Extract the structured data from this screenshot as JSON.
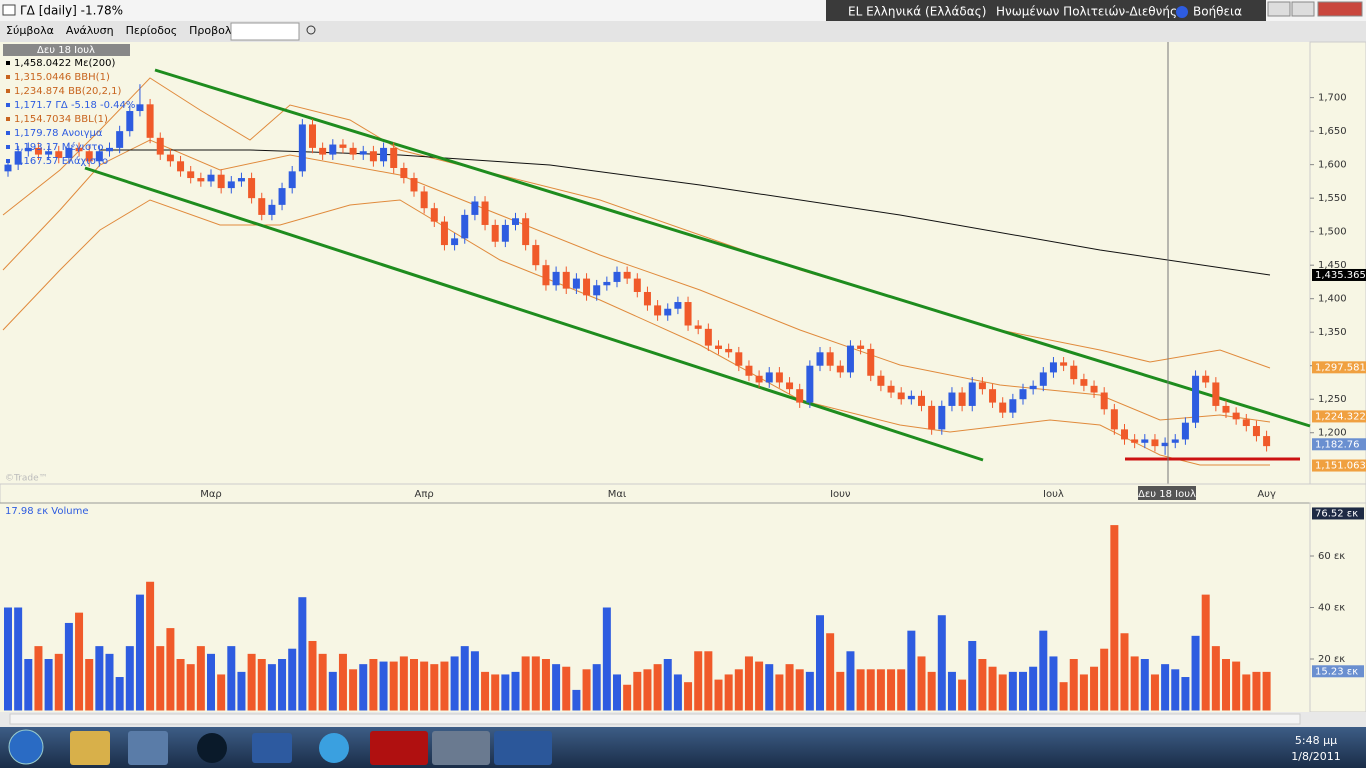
{
  "window": {
    "title": "ΓΔ [daily] -1.78%",
    "language": "EL Ελληνικά (Ελλάδας)",
    "keyboard": "Ηνωμένων Πολιτειών-Διεθνής",
    "help": "Βοήθεια"
  },
  "menu": [
    "Σύμβολα",
    "Ανάλυση",
    "Περίοδος",
    "Προβολή"
  ],
  "price_chart": {
    "type": "candlestick",
    "info_date": "Δευ 18 Ιουλ",
    "info": [
      {
        "text": "1,458.0422 Με(200)",
        "color": "#000000"
      },
      {
        "text": "1,315.0446 BBH(1)",
        "color": "#c8641e"
      },
      {
        "text": "1,234.874 BB(20,2,1)",
        "color": "#c8641e"
      },
      {
        "text": "1,171.7 ΓΔ -5.18 -0.44%",
        "color": "#2e5ce0"
      },
      {
        "text": "1,154.7034 BBL(1)",
        "color": "#c8641e"
      },
      {
        "text": "1,179.78 Ανοιγμα",
        "color": "#2e5ce0"
      },
      {
        "text": "1,193.17 Μέγιστο",
        "color": "#2e5ce0"
      },
      {
        "text": "1,167.57 Ελάχιστο",
        "color": "#2e5ce0"
      }
    ],
    "watermark": "©Trade™",
    "crosshair_label": "Δευ 18 Ιουλ",
    "categories": [
      null,
      null,
      null,
      null,
      null,
      null,
      null,
      null,
      null,
      null,
      null,
      null,
      null,
      null,
      null,
      null,
      null,
      null,
      null,
      null,
      "Μαρ",
      null,
      null,
      null,
      null,
      null,
      null,
      null,
      null,
      null,
      null,
      null,
      null,
      null,
      null,
      null,
      null,
      null,
      null,
      null,
      null,
      "Απρ",
      null,
      null,
      null,
      null,
      null,
      null,
      null,
      null,
      null,
      null,
      null,
      null,
      null,
      null,
      null,
      null,
      null,
      null,
      "Μαι",
      null,
      null,
      null,
      null,
      null,
      null,
      null,
      null,
      null,
      null,
      null,
      null,
      null,
      null,
      null,
      null,
      null,
      null,
      null,
      null,
      null,
      "Ιουν",
      null,
      null,
      null,
      null,
      null,
      null,
      null,
      null,
      null,
      null,
      null,
      null,
      null,
      null,
      null,
      null,
      null,
      null,
      null,
      null,
      "Ιουλ",
      null,
      null,
      null,
      null,
      null,
      null,
      null,
      null,
      null,
      null,
      null,
      null,
      null,
      null,
      null,
      null,
      null,
      null,
      null,
      null,
      "Αυγ"
    ],
    "candles": [
      [
        1590,
        1608,
        1582,
        1600
      ],
      [
        1600,
        1628,
        1592,
        1620
      ],
      [
        1620,
        1633,
        1612,
        1625
      ],
      [
        1625,
        1633,
        1607,
        1615
      ],
      [
        1615,
        1628,
        1607,
        1620
      ],
      [
        1620,
        1628,
        1602,
        1610
      ],
      [
        1610,
        1633,
        1602,
        1625
      ],
      [
        1625,
        1633,
        1612,
        1620
      ],
      [
        1620,
        1628,
        1597,
        1605
      ],
      [
        1605,
        1628,
        1597,
        1620
      ],
      [
        1620,
        1633,
        1612,
        1625
      ],
      [
        1625,
        1658,
        1617,
        1650
      ],
      [
        1650,
        1688,
        1642,
        1680
      ],
      [
        1680,
        1720,
        1672,
        1690
      ],
      [
        1690,
        1698,
        1632,
        1640
      ],
      [
        1640,
        1648,
        1607,
        1615
      ],
      [
        1615,
        1623,
        1597,
        1605
      ],
      [
        1605,
        1613,
        1582,
        1590
      ],
      [
        1590,
        1598,
        1572,
        1580
      ],
      [
        1580,
        1588,
        1567,
        1575
      ],
      [
        1575,
        1593,
        1567,
        1585
      ],
      [
        1585,
        1593,
        1557,
        1565
      ],
      [
        1565,
        1583,
        1557,
        1575
      ],
      [
        1575,
        1588,
        1567,
        1580
      ],
      [
        1580,
        1588,
        1542,
        1550
      ],
      [
        1550,
        1558,
        1517,
        1525
      ],
      [
        1525,
        1548,
        1517,
        1540
      ],
      [
        1540,
        1573,
        1532,
        1565
      ],
      [
        1565,
        1598,
        1557,
        1590
      ],
      [
        1590,
        1668,
        1582,
        1660
      ],
      [
        1660,
        1668,
        1617,
        1625
      ],
      [
        1625,
        1633,
        1607,
        1615
      ],
      [
        1615,
        1638,
        1607,
        1630
      ],
      [
        1630,
        1638,
        1617,
        1625
      ],
      [
        1625,
        1633,
        1607,
        1615
      ],
      [
        1615,
        1628,
        1607,
        1620
      ],
      [
        1620,
        1628,
        1597,
        1605
      ],
      [
        1605,
        1633,
        1597,
        1625
      ],
      [
        1625,
        1633,
        1587,
        1595
      ],
      [
        1595,
        1603,
        1572,
        1580
      ],
      [
        1580,
        1588,
        1552,
        1560
      ],
      [
        1560,
        1568,
        1527,
        1535
      ],
      [
        1535,
        1543,
        1507,
        1515
      ],
      [
        1515,
        1523,
        1472,
        1480
      ],
      [
        1480,
        1498,
        1472,
        1490
      ],
      [
        1490,
        1533,
        1482,
        1525
      ],
      [
        1525,
        1553,
        1517,
        1545
      ],
      [
        1545,
        1553,
        1502,
        1510
      ],
      [
        1510,
        1518,
        1477,
        1485
      ],
      [
        1485,
        1518,
        1477,
        1510
      ],
      [
        1510,
        1528,
        1502,
        1520
      ],
      [
        1520,
        1528,
        1472,
        1480
      ],
      [
        1480,
        1488,
        1442,
        1450
      ],
      [
        1450,
        1458,
        1412,
        1420
      ],
      [
        1420,
        1448,
        1412,
        1440
      ],
      [
        1440,
        1448,
        1407,
        1415
      ],
      [
        1415,
        1438,
        1407,
        1430
      ],
      [
        1430,
        1438,
        1397,
        1405
      ],
      [
        1405,
        1428,
        1397,
        1420
      ],
      [
        1420,
        1433,
        1412,
        1425
      ],
      [
        1425,
        1448,
        1417,
        1440
      ],
      [
        1440,
        1448,
        1422,
        1430
      ],
      [
        1430,
        1438,
        1402,
        1410
      ],
      [
        1410,
        1418,
        1382,
        1390
      ],
      [
        1390,
        1398,
        1367,
        1375
      ],
      [
        1375,
        1393,
        1367,
        1385
      ],
      [
        1385,
        1403,
        1377,
        1395
      ],
      [
        1395,
        1403,
        1352,
        1360
      ],
      [
        1360,
        1368,
        1347,
        1355
      ],
      [
        1355,
        1363,
        1322,
        1330
      ],
      [
        1330,
        1338,
        1317,
        1325
      ],
      [
        1325,
        1333,
        1312,
        1320
      ],
      [
        1320,
        1328,
        1292,
        1300
      ],
      [
        1300,
        1308,
        1277,
        1285
      ],
      [
        1285,
        1293,
        1267,
        1275
      ],
      [
        1275,
        1298,
        1267,
        1290
      ],
      [
        1290,
        1298,
        1267,
        1275
      ],
      [
        1275,
        1283,
        1257,
        1265
      ],
      [
        1265,
        1273,
        1237,
        1245
      ],
      [
        1245,
        1308,
        1237,
        1300
      ],
      [
        1300,
        1328,
        1292,
        1320
      ],
      [
        1320,
        1328,
        1292,
        1300
      ],
      [
        1300,
        1308,
        1282,
        1290
      ],
      [
        1290,
        1338,
        1282,
        1330
      ],
      [
        1330,
        1338,
        1317,
        1325
      ],
      [
        1325,
        1333,
        1277,
        1285
      ],
      [
        1285,
        1293,
        1262,
        1270
      ],
      [
        1270,
        1278,
        1252,
        1260
      ],
      [
        1260,
        1268,
        1242,
        1250
      ],
      [
        1250,
        1263,
        1242,
        1255
      ],
      [
        1255,
        1263,
        1232,
        1240
      ],
      [
        1240,
        1248,
        1197,
        1205
      ],
      [
        1205,
        1248,
        1197,
        1240
      ],
      [
        1240,
        1268,
        1232,
        1260
      ],
      [
        1260,
        1268,
        1232,
        1240
      ],
      [
        1240,
        1283,
        1232,
        1275
      ],
      [
        1275,
        1283,
        1257,
        1265
      ],
      [
        1265,
        1273,
        1237,
        1245
      ],
      [
        1245,
        1253,
        1222,
        1230
      ],
      [
        1230,
        1258,
        1222,
        1250
      ],
      [
        1250,
        1273,
        1242,
        1265
      ],
      [
        1265,
        1278,
        1257,
        1270
      ],
      [
        1270,
        1298,
        1262,
        1290
      ],
      [
        1290,
        1313,
        1282,
        1305
      ],
      [
        1305,
        1313,
        1292,
        1300
      ],
      [
        1300,
        1308,
        1272,
        1280
      ],
      [
        1280,
        1288,
        1262,
        1270
      ],
      [
        1270,
        1278,
        1252,
        1260
      ],
      [
        1260,
        1268,
        1227,
        1235
      ],
      [
        1235,
        1243,
        1197,
        1205
      ],
      [
        1205,
        1213,
        1182,
        1190
      ],
      [
        1190,
        1198,
        1177,
        1185
      ],
      [
        1185,
        1198,
        1177,
        1190
      ],
      [
        1190,
        1198,
        1172,
        1180
      ],
      [
        1180,
        1193,
        1167,
        1185
      ],
      [
        1185,
        1198,
        1177,
        1190
      ],
      [
        1190,
        1223,
        1182,
        1215
      ],
      [
        1215,
        1293,
        1207,
        1285
      ],
      [
        1285,
        1293,
        1267,
        1275
      ],
      [
        1275,
        1283,
        1232,
        1240
      ],
      [
        1240,
        1248,
        1222,
        1230
      ],
      [
        1230,
        1238,
        1212,
        1220
      ],
      [
        1220,
        1228,
        1202,
        1210
      ],
      [
        1210,
        1218,
        1187,
        1195
      ],
      [
        1195,
        1203,
        1172,
        1180
      ]
    ],
    "up_color": "#2e5ce0",
    "down_color": "#f05a2a",
    "ylim": [
      1125,
      1780
    ],
    "yticks": [
      {
        "value": 1200,
        "label": "1,200"
      },
      {
        "value": 1250,
        "label": "1,250"
      },
      {
        "value": 1300,
        "label": "1,300"
      },
      {
        "value": 1350,
        "label": "1,350"
      },
      {
        "value": 1400,
        "label": "1,400"
      },
      {
        "value": 1450,
        "label": "1,450"
      },
      {
        "value": 1500,
        "label": "1,500"
      },
      {
        "value": 1550,
        "label": "1,550"
      },
      {
        "value": 1600,
        "label": "1,600"
      },
      {
        "value": 1650,
        "label": "1,650"
      },
      {
        "value": 1700,
        "label": "1,700"
      }
    ],
    "price_labels": [
      {
        "value": 1435.365,
        "label": "1,435.365",
        "color": "#000000"
      },
      {
        "value": 1297.581,
        "label": "1,297.581",
        "color": "#f0a040"
      },
      {
        "value": 1224.322,
        "label": "1,224.322",
        "color": "#f0a040"
      },
      {
        "value": 1182.76,
        "label": "1,182.76",
        "color": "#6a8fd0"
      },
      {
        "value": 1151.063,
        "label": "1,151.063",
        "color": "#f0a040"
      }
    ]
  },
  "volume_chart": {
    "type": "bar",
    "legend": "17.98 εκ Volume",
    "values": [
      40,
      40,
      20,
      25,
      20,
      22,
      34,
      38,
      20,
      25,
      22,
      13,
      25,
      45,
      50,
      25,
      32,
      20,
      18,
      25,
      22,
      14,
      25,
      15,
      22,
      20,
      18,
      20,
      24,
      44,
      27,
      22,
      15,
      22,
      16,
      18,
      20,
      19,
      19,
      21,
      20,
      19,
      18,
      19,
      21,
      25,
      23,
      15,
      14,
      14,
      15,
      21,
      21,
      20,
      18,
      17,
      8,
      16,
      18,
      40,
      14,
      10,
      15,
      16,
      18,
      20,
      14,
      11,
      23,
      23,
      12,
      14,
      16,
      21,
      19,
      18,
      14,
      18,
      16,
      15,
      37,
      30,
      15,
      23,
      16,
      16,
      16,
      16,
      16,
      31,
      21,
      15,
      37,
      15,
      12,
      27,
      20,
      17,
      14,
      15,
      15,
      17,
      31,
      21,
      11,
      20,
      14,
      17,
      24,
      72,
      30,
      21,
      20,
      14,
      18,
      16,
      13,
      29,
      45,
      25,
      20,
      19,
      14,
      15,
      15
    ],
    "ylim": [
      0,
      80
    ],
    "yticks": [
      {
        "value": 20,
        "label": "20 εκ"
      },
      {
        "value": 40,
        "label": "40 εκ"
      },
      {
        "value": 60,
        "label": "60 εκ"
      }
    ],
    "value_markers": [
      {
        "value": 76.52,
        "label": "76.52 εκ",
        "color": "#1e2a44"
      },
      {
        "value": 15.23,
        "label": "15.23 εκ",
        "color": "#6a8fd0"
      }
    ]
  },
  "taskbar": {
    "time": "5:48 μμ",
    "date": "1/8/2011"
  }
}
